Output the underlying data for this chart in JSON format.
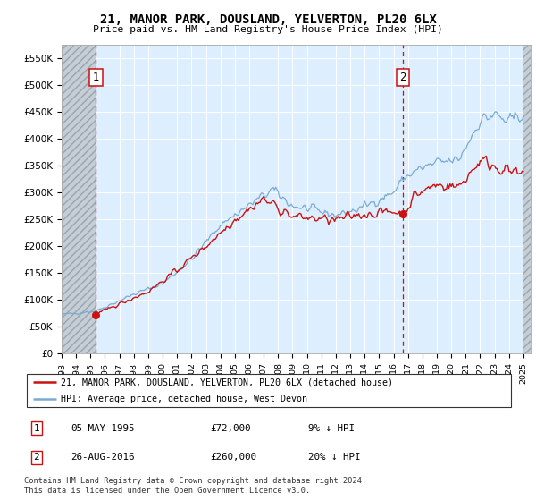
{
  "title": "21, MANOR PARK, DOUSLAND, YELVERTON, PL20 6LX",
  "subtitle": "Price paid vs. HM Land Registry's House Price Index (HPI)",
  "ylim": [
    0,
    575000
  ],
  "yticks": [
    0,
    50000,
    100000,
    150000,
    200000,
    250000,
    300000,
    350000,
    400000,
    450000,
    500000,
    550000
  ],
  "ytick_labels": [
    "£0",
    "£50K",
    "£100K",
    "£150K",
    "£200K",
    "£250K",
    "£300K",
    "£350K",
    "£400K",
    "£450K",
    "£500K",
    "£550K"
  ],
  "sale1_date": 1995.38,
  "sale1_price": 72000,
  "sale2_date": 2016.65,
  "sale2_price": 260000,
  "hpi_color": "#7aaad4",
  "price_color": "#cc1111",
  "marker_color": "#cc1111",
  "dashed_line_color": "#cc1111",
  "background_plot": "#ddeeff",
  "grid_color": "#ffffff",
  "legend_label1": "21, MANOR PARK, DOUSLAND, YELVERTON, PL20 6LX (detached house)",
  "legend_label2": "HPI: Average price, detached house, West Devon",
  "table_row1": [
    "1",
    "05-MAY-1995",
    "£72,000",
    "9% ↓ HPI"
  ],
  "table_row2": [
    "2",
    "26-AUG-2016",
    "£260,000",
    "20% ↓ HPI"
  ],
  "footnote": "Contains HM Land Registry data © Crown copyright and database right 2024.\nThis data is licensed under the Open Government Licence v3.0.",
  "xmin": 1993,
  "xmax": 2025.5
}
